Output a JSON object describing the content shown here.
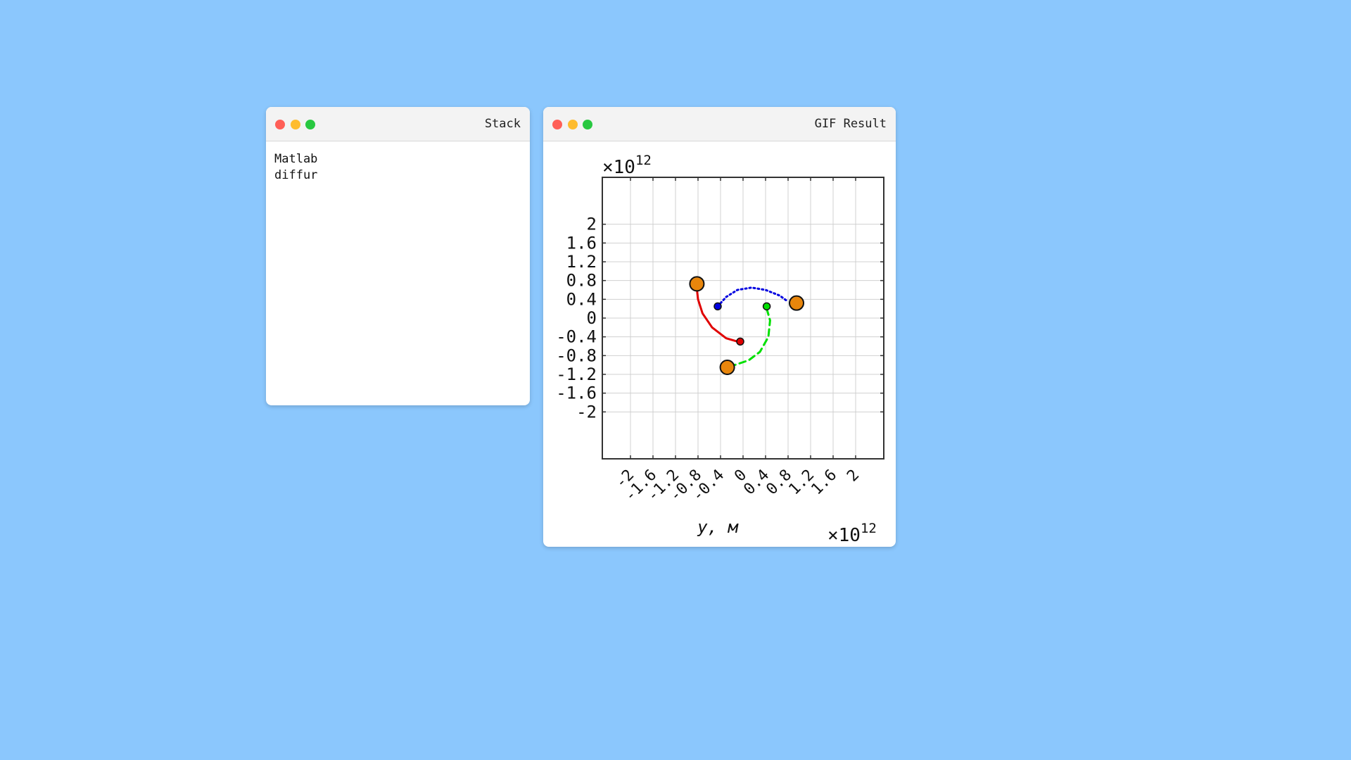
{
  "stack_window": {
    "title": "Stack",
    "lines": [
      "Matlab",
      "diffur"
    ]
  },
  "gif_window": {
    "title": "GIF Result",
    "figure": {
      "y_exponent_prefix": "×10",
      "y_exponent_power": "12",
      "x_exponent_prefix": "×10",
      "x_exponent_power": "12",
      "xlabel": "y, м"
    }
  },
  "chart_data": {
    "type": "line",
    "title": "",
    "xlabel": "y, м",
    "ylabel": "",
    "x_scale_factor": "×10^12",
    "y_scale_factor": "×10^12",
    "xlim": [
      -2.5,
      2.5
    ],
    "ylim": [
      -3.0,
      3.0
    ],
    "grid": true,
    "x_ticks": [
      -2,
      -1.6,
      -1.2,
      -0.8,
      -0.4,
      0,
      0.4,
      0.8,
      1.2,
      1.6,
      2
    ],
    "x_tick_labels": [
      "-2",
      "-1.6",
      "-1.2",
      "-0.8",
      "-0.4",
      "0",
      "0.4",
      "0.8",
      "1.2",
      "1.6",
      "2"
    ],
    "y_ticks": [
      2,
      1.6,
      1.2,
      0.8,
      0.4,
      0,
      -0.4,
      -0.8,
      -1.2,
      -1.6,
      -2
    ],
    "y_tick_labels": [
      "2",
      "1.6",
      "1.2",
      "0.8",
      "0.4",
      "0",
      "-0.4",
      "-0.8",
      "-1.2",
      "-1.6",
      "-2"
    ],
    "series": [
      {
        "color": "#e00000",
        "style": "solid",
        "x": [
          -0.82,
          -0.8,
          -0.72,
          -0.55,
          -0.3,
          -0.1,
          -0.05
        ],
        "y": [
          0.62,
          0.4,
          0.1,
          -0.2,
          -0.43,
          -0.5,
          -0.52
        ],
        "start": {
          "x": -0.05,
          "y": -0.5
        },
        "end": {
          "x": -0.82,
          "y": 0.73
        }
      },
      {
        "color": "#0000e0",
        "style": "dotted",
        "x": [
          -0.45,
          -0.3,
          -0.1,
          0.15,
          0.4,
          0.65,
          0.8
        ],
        "y": [
          0.25,
          0.45,
          0.6,
          0.65,
          0.6,
          0.48,
          0.35
        ],
        "start": {
          "x": -0.45,
          "y": 0.25
        },
        "end": {
          "x": 0.95,
          "y": 0.32
        }
      },
      {
        "color": "#00e000",
        "style": "dashed",
        "x": [
          0.42,
          0.48,
          0.45,
          0.3,
          0.1,
          -0.15
        ],
        "y": [
          0.2,
          -0.05,
          -0.4,
          -0.72,
          -0.9,
          -1.0
        ],
        "start": {
          "x": 0.42,
          "y": 0.25
        },
        "end": {
          "x": -0.28,
          "y": -1.05
        }
      }
    ],
    "body_color": "#e8860c",
    "start_marker_colors": [
      "#e00000",
      "#0000e0",
      "#00e000"
    ]
  }
}
